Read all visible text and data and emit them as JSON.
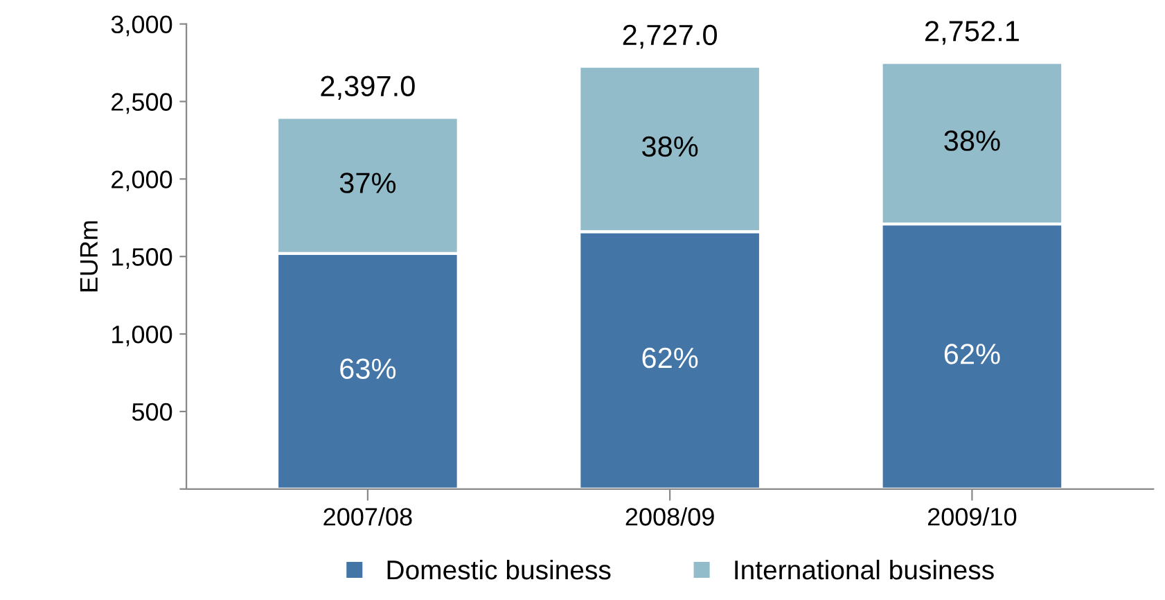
{
  "chart_data": {
    "type": "bar",
    "stacked": true,
    "ylabel": "EURm",
    "categories": [
      "2007/08",
      "2008/09",
      "2009/10"
    ],
    "series": [
      {
        "name": "Domestic business",
        "color": "#4375a7",
        "values": [
          1520,
          1660,
          1710
        ]
      },
      {
        "name": "International business",
        "color": "#93bccb",
        "values": [
          877,
          1067,
          1042.1
        ]
      }
    ],
    "annotations": [
      "63%",
      "62%",
      "62%",
      "37%",
      "38%",
      "38%"
    ],
    "totals": [
      "2,397.0",
      "2,727.0",
      "2,752.1"
    ],
    "ylim": [
      0,
      3000
    ],
    "yticks": [
      {
        "value": 0,
        "label": null
      },
      {
        "value": 500,
        "label": "500"
      },
      {
        "value": 1000,
        "label": "1,000"
      },
      {
        "value": 1500,
        "label": "1,500"
      },
      {
        "value": 2000,
        "label": "2,000"
      },
      {
        "value": 2500,
        "label": "2,500"
      },
      {
        "value": 3000,
        "label": "3,000"
      }
    ],
    "grid": false,
    "legend": "bottom"
  }
}
